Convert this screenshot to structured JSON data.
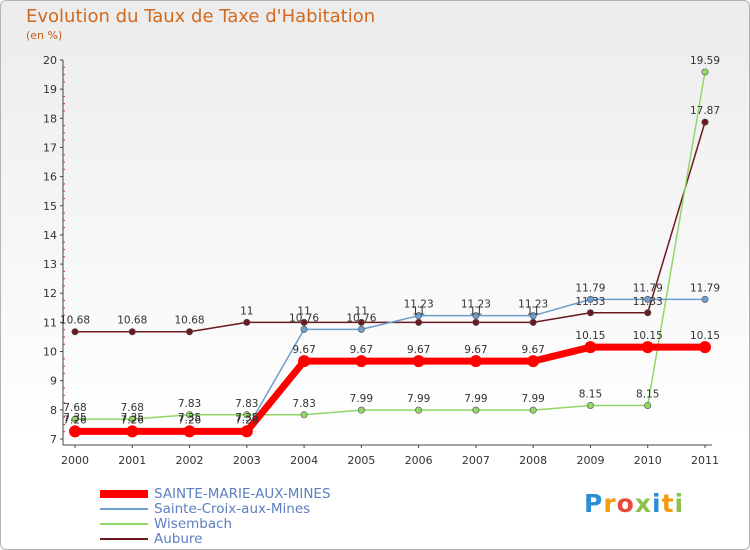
{
  "header": {
    "title": "Evolution du Taux de Taxe d'Habitation",
    "unit": "(en %)"
  },
  "chart_data": {
    "type": "line",
    "title": "Evolution du Taux de Taxe d'Habitation",
    "ylabel": "(en %)",
    "xlabel": "",
    "ylim": [
      7,
      20
    ],
    "yticks": [
      "7",
      "8",
      "9",
      "10",
      "11",
      "12",
      "13",
      "14",
      "15",
      "16",
      "17",
      "18",
      "19",
      "20"
    ],
    "categories": [
      "2000",
      "2001",
      "2002",
      "2003",
      "2004",
      "2005",
      "2006",
      "2007",
      "2008",
      "2009",
      "2010",
      "2011"
    ],
    "grid": false,
    "legend_position": "bottom-left",
    "series": [
      {
        "name": "Aubure",
        "color": "#6b1a1f",
        "values": [
          10.68,
          10.68,
          10.68,
          11,
          11,
          11,
          11,
          11,
          11,
          11.33,
          11.33,
          17.87
        ],
        "labels": [
          "10.68",
          "10.68",
          "10.68",
          "11",
          "11",
          "11",
          "11",
          "11",
          "11",
          "11.33",
          "11.33",
          "17.87"
        ]
      },
      {
        "name": "Wisembach",
        "color": "#8fd866",
        "values": [
          7.68,
          7.68,
          7.83,
          7.83,
          7.83,
          7.99,
          7.99,
          7.99,
          7.99,
          8.15,
          8.15,
          19.59
        ],
        "labels": [
          "7.68",
          "7.68",
          "7.83",
          "7.83",
          "7.83",
          "7.99",
          "7.99",
          "7.99",
          "7.99",
          "8.15",
          "8.15",
          "19.59"
        ]
      },
      {
        "name": "Sainte-Croix-aux-Mines",
        "color": "#6a9fd0",
        "values": [
          7.35,
          7.35,
          7.35,
          7.35,
          10.76,
          10.76,
          11.23,
          11.23,
          11.23,
          11.79,
          11.79,
          11.79
        ],
        "labels": [
          "7.35",
          "7.35",
          "7.35",
          "7.35",
          "10.76",
          "10.76",
          "11.23",
          "11.23",
          "11.23",
          "11.79",
          "11.79",
          "11.79"
        ]
      },
      {
        "name": "SAINTE-MARIE-AUX-MINES",
        "color": "#ff0000",
        "values": [
          7.26,
          7.26,
          7.26,
          7.26,
          9.67,
          9.67,
          9.67,
          9.67,
          9.67,
          10.15,
          10.15,
          10.15
        ],
        "labels": [
          "7.26",
          "7.26",
          "7.26",
          "7.26",
          "9.67",
          "9.67",
          "9.67",
          "9.67",
          "9.67",
          "10.15",
          "10.15",
          "10.15"
        ]
      }
    ]
  },
  "legend": [
    {
      "label": "SAINTE-MARIE-AUX-MINES",
      "color": "#ff0000"
    },
    {
      "label": "Sainte-Croix-aux-Mines",
      "color": "#6a9fd0"
    },
    {
      "label": "Wisembach",
      "color": "#8fd866"
    },
    {
      "label": "Aubure",
      "color": "#6b1a1f"
    }
  ],
  "logo": {
    "letters": [
      "P",
      "r",
      "o",
      "x",
      "i",
      "t",
      "i"
    ],
    "colors": [
      "#2a8fd6",
      "#f39c12",
      "#e74c3c",
      "#8bc34a",
      "#2a8fd6",
      "#f39c12",
      "#8bc34a"
    ]
  }
}
